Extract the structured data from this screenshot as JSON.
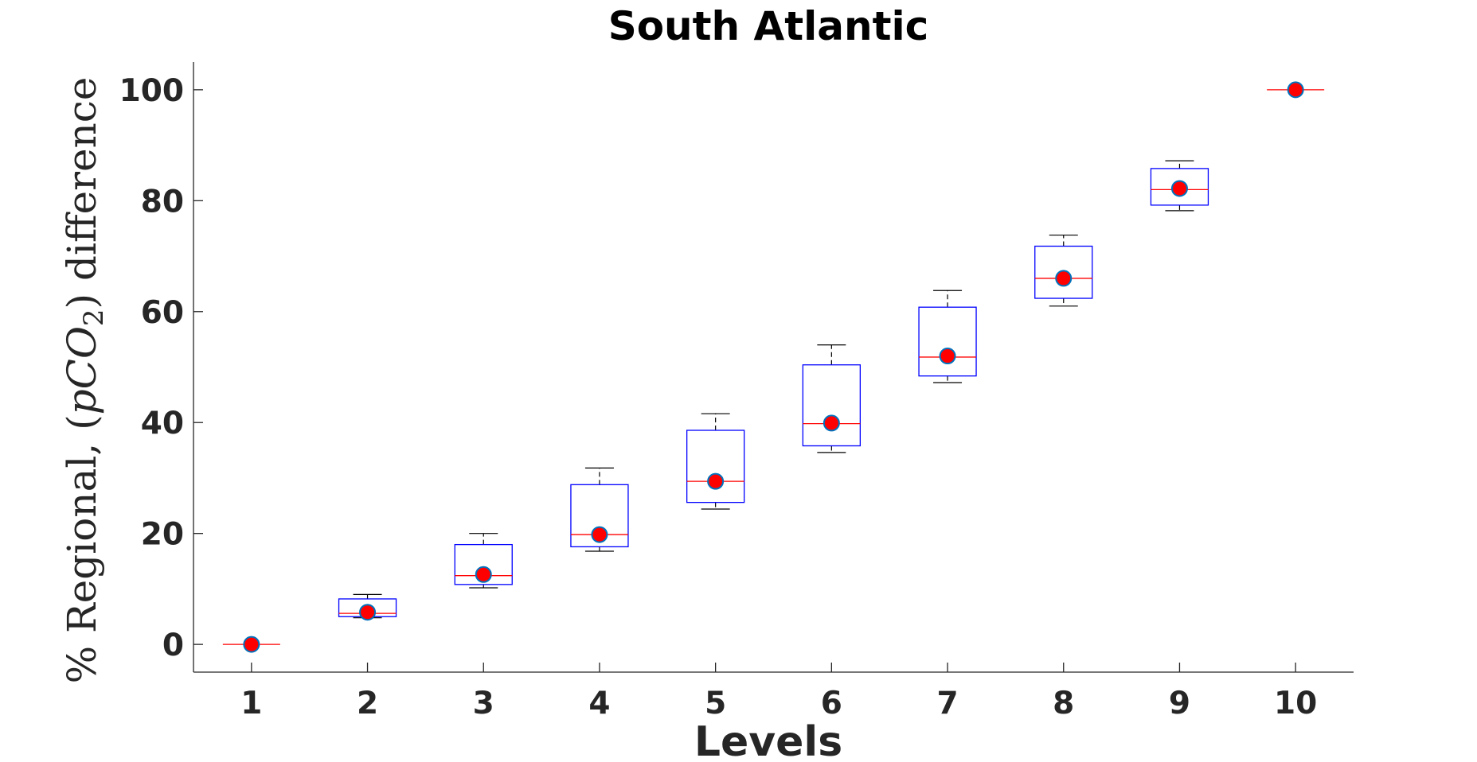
{
  "chart_data": {
    "type": "box",
    "title": "South Atlantic",
    "xlabel": "Levels",
    "ylabel": {
      "prefix": "% Regional, (",
      "var_p": "p",
      "var_co": "CO",
      "subscript": "2",
      "suffix": ") difference"
    },
    "categories": [
      "1",
      "2",
      "3",
      "4",
      "5",
      "6",
      "7",
      "8",
      "9",
      "10"
    ],
    "yticks": [
      0,
      20,
      40,
      60,
      80,
      100
    ],
    "ylim": [
      -5,
      105
    ],
    "xlim": [
      0.5,
      10.5
    ],
    "colors": {
      "box": "#0000ff",
      "median": "#ff0000",
      "whisker": "#000000",
      "marker_fill": "#ff0000",
      "marker_edge": "#0072bd",
      "axis": "#262626"
    },
    "boxes": [
      {
        "level": 1,
        "whisker_low": 0,
        "q1": 0,
        "median": 0,
        "q3": 0,
        "whisker_high": 0,
        "marker": 0
      },
      {
        "level": 2,
        "whisker_low": 4.8,
        "q1": 5.0,
        "median": 5.6,
        "q3": 8.2,
        "whisker_high": 9.0,
        "marker": 5.8
      },
      {
        "level": 3,
        "whisker_low": 10.2,
        "q1": 10.8,
        "median": 12.4,
        "q3": 18.0,
        "whisker_high": 20.0,
        "marker": 12.6
      },
      {
        "level": 4,
        "whisker_low": 16.8,
        "q1": 17.6,
        "median": 19.8,
        "q3": 28.8,
        "whisker_high": 31.8,
        "marker": 19.8
      },
      {
        "level": 5,
        "whisker_low": 24.4,
        "q1": 25.6,
        "median": 29.4,
        "q3": 38.6,
        "whisker_high": 41.6,
        "marker": 29.4
      },
      {
        "level": 6,
        "whisker_low": 34.6,
        "q1": 35.8,
        "median": 39.8,
        "q3": 50.4,
        "whisker_high": 54.0,
        "marker": 39.9
      },
      {
        "level": 7,
        "whisker_low": 47.2,
        "q1": 48.4,
        "median": 51.8,
        "q3": 60.8,
        "whisker_high": 63.8,
        "marker": 52.0
      },
      {
        "level": 8,
        "whisker_low": 61.0,
        "q1": 62.4,
        "median": 66.0,
        "q3": 71.8,
        "whisker_high": 73.8,
        "marker": 66.0
      },
      {
        "level": 9,
        "whisker_low": 78.2,
        "q1": 79.2,
        "median": 82.0,
        "q3": 85.8,
        "whisker_high": 87.2,
        "marker": 82.2
      },
      {
        "level": 10,
        "whisker_low": 100,
        "q1": 100,
        "median": 100,
        "q3": 100,
        "whisker_high": 100,
        "marker": 100
      }
    ]
  }
}
